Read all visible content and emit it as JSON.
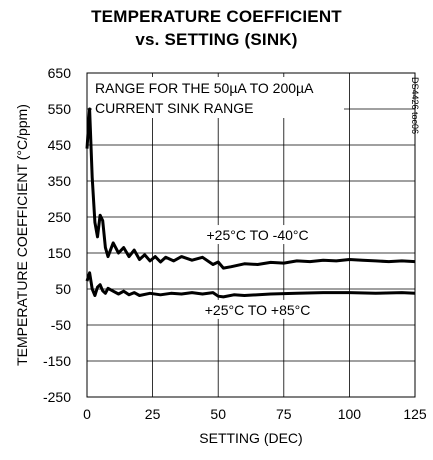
{
  "chart_data": {
    "type": "line",
    "title_line1": "TEMPERATURE COEFFICIENT",
    "title_line2": "vs. SETTING (SINK)",
    "xlabel": "SETTING (DEC)",
    "ylabel": "TEMPERATURE COEFFICIENT (°C/ppm)",
    "xlim": [
      0,
      125
    ],
    "ylim": [
      -250,
      650
    ],
    "xticks": [
      0,
      25,
      50,
      75,
      100,
      125
    ],
    "yticks": [
      -250,
      -150,
      -50,
      50,
      150,
      250,
      350,
      450,
      550,
      650
    ],
    "grid": true,
    "annotations": {
      "range_line1": "RANGE FOR THE 50µA TO 200µA",
      "range_line2": "CURRENT SINK RANGE",
      "code": "DS4426 toc06"
    },
    "series": [
      {
        "name": "+25°C TO -40°C",
        "x": [
          0,
          1,
          2,
          3,
          4,
          5,
          6,
          7,
          8,
          10,
          12,
          14,
          16,
          18,
          20,
          22,
          24,
          26,
          28,
          30,
          33,
          36,
          40,
          44,
          48,
          50,
          52,
          55,
          60,
          65,
          70,
          75,
          80,
          85,
          90,
          95,
          100,
          105,
          110,
          115,
          120,
          125
        ],
        "y": [
          440,
          550,
          360,
          235,
          195,
          255,
          240,
          165,
          140,
          178,
          150,
          165,
          140,
          158,
          132,
          145,
          128,
          140,
          125,
          138,
          128,
          140,
          130,
          138,
          118,
          125,
          108,
          112,
          120,
          118,
          124,
          122,
          128,
          126,
          130,
          128,
          132,
          130,
          128,
          126,
          128,
          126
        ]
      },
      {
        "name": "+25°C TO +85°C",
        "x": [
          0,
          1,
          2,
          3,
          4,
          5,
          6,
          7,
          8,
          10,
          12,
          14,
          16,
          18,
          20,
          24,
          28,
          32,
          36,
          40,
          44,
          48,
          50,
          52,
          56,
          60,
          70,
          80,
          90,
          100,
          110,
          120,
          125
        ],
        "y": [
          72,
          95,
          50,
          32,
          55,
          62,
          45,
          38,
          52,
          44,
          36,
          44,
          34,
          40,
          32,
          38,
          34,
          38,
          36,
          40,
          36,
          40,
          30,
          28,
          34,
          32,
          36,
          38,
          40,
          40,
          38,
          40,
          38
        ]
      }
    ]
  }
}
